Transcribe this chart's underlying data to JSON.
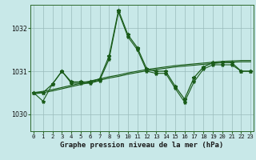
{
  "title": "",
  "xlabel": "Graphe pression niveau de la mer (hPa)",
  "bg_color": "#c8e8e8",
  "plot_bg_color": "#c8e8e8",
  "grid_color": "#99bbbb",
  "line_color": "#1a5c1a",
  "x_ticks": [
    0,
    1,
    2,
    3,
    4,
    5,
    6,
    7,
    8,
    9,
    10,
    11,
    12,
    13,
    14,
    15,
    16,
    17,
    18,
    19,
    20,
    21,
    22,
    23
  ],
  "xlim": [
    -0.3,
    23.3
  ],
  "ylim": [
    1029.6,
    1032.55
  ],
  "yticks": [
    1030,
    1031,
    1032
  ],
  "line1_x": [
    0,
    1,
    2,
    3,
    4,
    5,
    6,
    7,
    8,
    9,
    10,
    11,
    12,
    13,
    14,
    15,
    16,
    17,
    18,
    19,
    20,
    21,
    22,
    23
  ],
  "line1_y": [
    1030.5,
    1030.5,
    1030.7,
    1031.0,
    1030.75,
    1030.75,
    1030.75,
    1030.82,
    1031.35,
    1032.42,
    1031.85,
    1031.55,
    1031.05,
    1031.0,
    1031.0,
    1030.65,
    1030.35,
    1030.85,
    1031.1,
    1031.2,
    1031.2,
    1031.2,
    1031.0,
    1031.0
  ],
  "line2_x": [
    0,
    1,
    2,
    3,
    4,
    5,
    6,
    7,
    8,
    9,
    10,
    11,
    12,
    13,
    14,
    15,
    16,
    17,
    18,
    19,
    20,
    21,
    22,
    23
  ],
  "line2_y": [
    1030.5,
    1030.3,
    1030.7,
    1031.0,
    1030.72,
    1030.72,
    1030.72,
    1030.78,
    1031.28,
    1032.38,
    1031.8,
    1031.5,
    1031.0,
    1030.95,
    1030.95,
    1030.6,
    1030.28,
    1030.75,
    1031.05,
    1031.15,
    1031.15,
    1031.15,
    1031.0,
    1031.0
  ],
  "line3_smooth_x": [
    0,
    1,
    2,
    3,
    4,
    5,
    6,
    7,
    8,
    9,
    10,
    11,
    12,
    13,
    14,
    15,
    16,
    17,
    18,
    19,
    20,
    21,
    22,
    23
  ],
  "line3_smooth_y": [
    1030.5,
    1030.53,
    1030.57,
    1030.62,
    1030.67,
    1030.72,
    1030.77,
    1030.82,
    1030.87,
    1030.91,
    1030.96,
    1031.0,
    1031.04,
    1031.07,
    1031.1,
    1031.13,
    1031.15,
    1031.17,
    1031.19,
    1031.21,
    1031.23,
    1031.24,
    1031.25,
    1031.25
  ],
  "line4_smooth_x": [
    0,
    1,
    2,
    3,
    4,
    5,
    6,
    7,
    8,
    9,
    10,
    11,
    12,
    13,
    14,
    15,
    16,
    17,
    18,
    19,
    20,
    21,
    22,
    23
  ],
  "line4_smooth_y": [
    1030.47,
    1030.5,
    1030.54,
    1030.59,
    1030.64,
    1030.69,
    1030.74,
    1030.79,
    1030.84,
    1030.88,
    1030.93,
    1030.97,
    1031.01,
    1031.04,
    1031.07,
    1031.1,
    1031.12,
    1031.14,
    1031.16,
    1031.18,
    1031.2,
    1031.21,
    1031.22,
    1031.22
  ],
  "marker": "*",
  "ms1": 3.5,
  "ms2": 3.0,
  "lw1": 0.9,
  "lw2": 0.8,
  "lw_smooth": 0.85,
  "xlabel_fontsize": 6.5,
  "tick_fontsize": 5.2
}
